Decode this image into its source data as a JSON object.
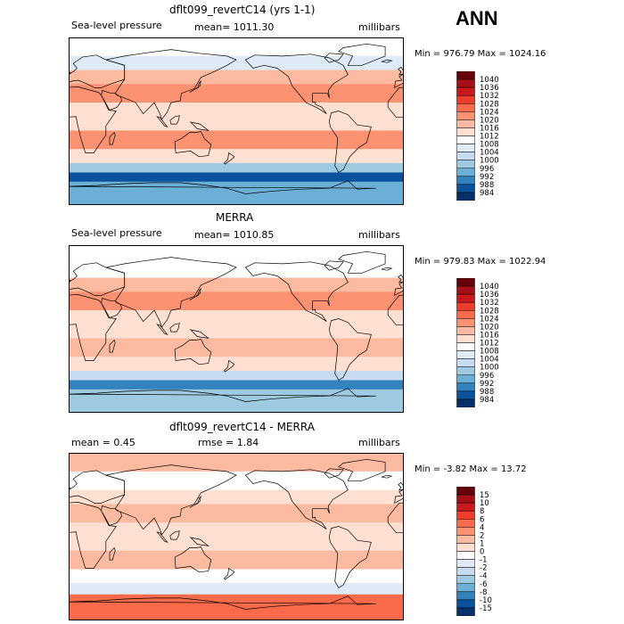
{
  "season_label": "ANN",
  "chart_data": [
    {
      "type": "heatmap",
      "title": "dflt099_revertC14 (yrs 1-1)",
      "variable": "Sea-level pressure",
      "mean_text": "mean= 1011.30",
      "units": "millibars",
      "min_max_text": "Min = 976.79 Max = 1024.16",
      "stats": {
        "mean": 1011.3,
        "min": 976.79,
        "max": 1024.16
      },
      "colorbar_levels": [
        "1040",
        "1036",
        "1032",
        "1028",
        "1024",
        "1020",
        "1016",
        "1012",
        "1008",
        "1004",
        "1000",
        "996",
        "992",
        "988",
        "984"
      ],
      "colorbar_colors": [
        "#67000d",
        "#a50f15",
        "#cb181d",
        "#ef3b2c",
        "#fb6a4a",
        "#fc9272",
        "#fcbba1",
        "#fee0d2",
        "#ffffff",
        "#deebf7",
        "#c6dbef",
        "#9ecae1",
        "#6baed6",
        "#3182bd",
        "#08519c",
        "#08306b"
      ],
      "latitude_bands": [
        {
          "lat_from": 90,
          "lat_to": 70,
          "level": 1008
        },
        {
          "lat_from": 70,
          "lat_to": 55,
          "level": 1004
        },
        {
          "lat_from": 55,
          "lat_to": 40,
          "level": 1016
        },
        {
          "lat_from": 40,
          "lat_to": 20,
          "level": 1020
        },
        {
          "lat_from": 20,
          "lat_to": -10,
          "level": 1012
        },
        {
          "lat_from": -10,
          "lat_to": -30,
          "level": 1020
        },
        {
          "lat_from": -30,
          "lat_to": -45,
          "level": 1012
        },
        {
          "lat_from": -45,
          "lat_to": -55,
          "level": 996
        },
        {
          "lat_from": -55,
          "lat_to": -65,
          "level": 984
        },
        {
          "lat_from": -65,
          "lat_to": -90,
          "level": 992
        }
      ],
      "grid": false
    },
    {
      "type": "heatmap",
      "title": "MERRA",
      "variable": "Sea-level pressure",
      "mean_text": "mean= 1010.85",
      "units": "millibars",
      "min_max_text": "Min = 979.83 Max = 1022.94",
      "stats": {
        "mean": 1010.85,
        "min": 979.83,
        "max": 1022.94
      },
      "colorbar_levels": [
        "1040",
        "1036",
        "1032",
        "1028",
        "1024",
        "1020",
        "1016",
        "1012",
        "1008",
        "1004",
        "1000",
        "996",
        "992",
        "988",
        "984"
      ],
      "colorbar_colors": [
        "#67000d",
        "#a50f15",
        "#cb181d",
        "#ef3b2c",
        "#fb6a4a",
        "#fc9272",
        "#fcbba1",
        "#fee0d2",
        "#ffffff",
        "#deebf7",
        "#c6dbef",
        "#9ecae1",
        "#6baed6",
        "#3182bd",
        "#08519c",
        "#08306b"
      ],
      "latitude_bands": [
        {
          "lat_from": 90,
          "lat_to": 70,
          "level": 1008
        },
        {
          "lat_from": 70,
          "lat_to": 55,
          "level": 1008
        },
        {
          "lat_from": 55,
          "lat_to": 40,
          "level": 1016
        },
        {
          "lat_from": 40,
          "lat_to": 20,
          "level": 1020
        },
        {
          "lat_from": 20,
          "lat_to": -10,
          "level": 1012
        },
        {
          "lat_from": -10,
          "lat_to": -30,
          "level": 1016
        },
        {
          "lat_from": -30,
          "lat_to": -45,
          "level": 1012
        },
        {
          "lat_from": -45,
          "lat_to": -55,
          "level": 1000
        },
        {
          "lat_from": -55,
          "lat_to": -65,
          "level": 988
        },
        {
          "lat_from": -65,
          "lat_to": -90,
          "level": 996
        }
      ],
      "grid": false
    },
    {
      "type": "heatmap",
      "title": "dflt099_revertC14 - MERRA",
      "variable": "",
      "mean_text": "mean = 0.45",
      "rmse_text": "rmse = 1.84",
      "units": "millibars",
      "min_max_text": "Min = -3.82 Max = 13.72",
      "stats": {
        "mean": 0.45,
        "rmse": 1.84,
        "min": -3.82,
        "max": 13.72
      },
      "colorbar_levels": [
        "15",
        "10",
        "8",
        "6",
        "4",
        "2",
        "1",
        "0",
        "-1",
        "-2",
        "-4",
        "-6",
        "-8",
        "-10",
        "-15"
      ],
      "colorbar_colors": [
        "#67000d",
        "#a50f15",
        "#cb181d",
        "#ef3b2c",
        "#fb6a4a",
        "#fc9272",
        "#fcbba1",
        "#fee0d2",
        "#ffffff",
        "#deebf7",
        "#c6dbef",
        "#9ecae1",
        "#6baed6",
        "#3182bd",
        "#08519c",
        "#08306b"
      ],
      "latitude_bands": [
        {
          "lat_from": 90,
          "lat_to": 70,
          "level": 1
        },
        {
          "lat_from": 70,
          "lat_to": 50,
          "level": -1
        },
        {
          "lat_from": 50,
          "lat_to": 35,
          "level": 0
        },
        {
          "lat_from": 35,
          "lat_to": 15,
          "level": 1
        },
        {
          "lat_from": 15,
          "lat_to": -15,
          "level": 0
        },
        {
          "lat_from": -15,
          "lat_to": -35,
          "level": 1
        },
        {
          "lat_from": -35,
          "lat_to": -50,
          "level": -1
        },
        {
          "lat_from": -50,
          "lat_to": -62,
          "level": -2
        },
        {
          "lat_from": -62,
          "lat_to": -90,
          "level": 4
        }
      ],
      "grid": false
    }
  ]
}
